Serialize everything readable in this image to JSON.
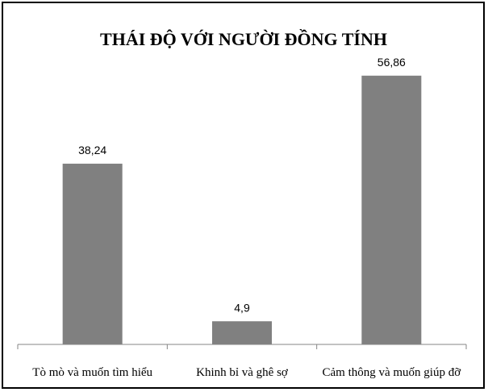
{
  "chart_data": {
    "type": "bar",
    "title": "THÁI ĐỘ VỚI NGƯỜI ĐỒNG TÍNH",
    "xlabel": "",
    "ylabel": "",
    "categories": [
      "Tò mò và muốn tìm hiểu",
      "Khinh bỉ và ghê sợ",
      "Cảm thông và muốn giúp đỡ"
    ],
    "values": [
      38.24,
      4.9,
      56.86
    ],
    "data_labels": [
      "38,24",
      "4,9",
      "56,86"
    ],
    "ylim": [
      0,
      60
    ],
    "grid": false,
    "legend": "none",
    "bar_color": "#808080"
  }
}
